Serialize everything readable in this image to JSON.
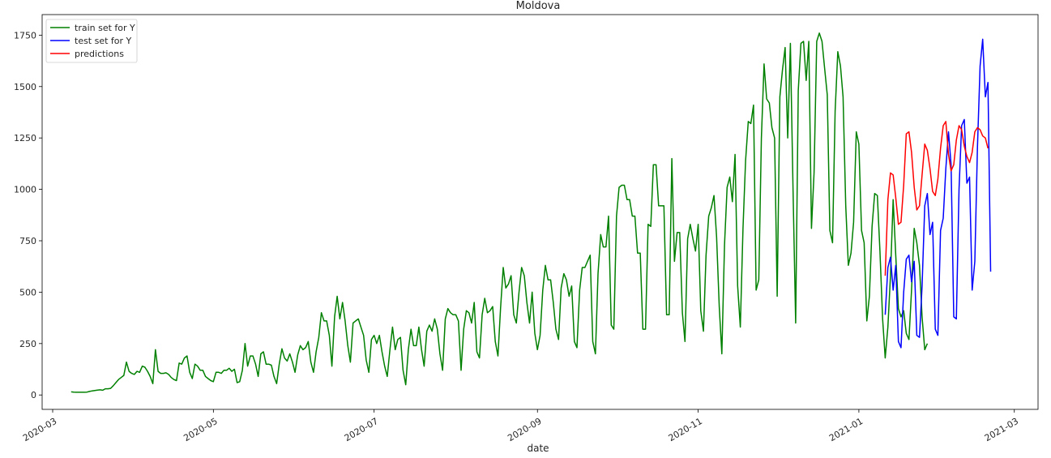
{
  "chart_data": {
    "type": "line",
    "title": "Moldova",
    "xlabel": "date",
    "ylabel": "",
    "x_axis_type": "date",
    "xlim": [
      "2020-02-26",
      "2021-03-10"
    ],
    "ylim": [
      -70,
      1850
    ],
    "grid": false,
    "legend_position": "top-left",
    "x_ticks": [
      "2020-03-01",
      "2020-05-01",
      "2020-07-01",
      "2020-09-01",
      "2020-11-01",
      "2021-01-01",
      "2021-03-01"
    ],
    "x_tick_labels": [
      "2020-03",
      "2020-05",
      "2020-07",
      "2020-09",
      "2020-11",
      "2021-01",
      "2021-03"
    ],
    "y_ticks": [
      0,
      250,
      500,
      750,
      1000,
      1250,
      1500,
      1750
    ],
    "y_tick_labels": [
      "0",
      "250",
      "500",
      "750",
      "1000",
      "1250",
      "1500",
      "1750"
    ],
    "series": [
      {
        "name": "train set for Y",
        "color": "#008000",
        "start_date": "2020-03-08",
        "values": [
          15,
          14,
          13,
          13,
          13,
          13,
          14,
          17,
          20,
          22,
          24,
          25,
          23,
          30,
          30,
          32,
          45,
          60,
          75,
          85,
          95,
          160,
          115,
          105,
          100,
          115,
          110,
          140,
          135,
          115,
          90,
          55,
          220,
          115,
          105,
          105,
          108,
          100,
          85,
          75,
          70,
          155,
          150,
          180,
          190,
          110,
          80,
          150,
          140,
          120,
          120,
          90,
          80,
          70,
          65,
          110,
          110,
          105,
          120,
          120,
          130,
          115,
          125,
          60,
          65,
          120,
          250,
          140,
          190,
          190,
          150,
          90,
          200,
          210,
          150,
          150,
          145,
          90,
          55,
          150,
          225,
          180,
          165,
          200,
          160,
          110,
          195,
          240,
          220,
          230,
          260,
          160,
          110,
          210,
          280,
          400,
          360,
          360,
          290,
          140,
          380,
          480,
          370,
          450,
          360,
          240,
          160,
          350,
          360,
          370,
          330,
          290,
          170,
          110,
          270,
          290,
          250,
          290,
          210,
          140,
          90,
          220,
          330,
          220,
          270,
          280,
          120,
          50,
          220,
          320,
          240,
          240,
          330,
          220,
          140,
          310,
          340,
          310,
          370,
          320,
          200,
          120,
          370,
          420,
          400,
          390,
          390,
          360,
          120,
          320,
          410,
          400,
          350,
          450,
          210,
          180,
          390,
          470,
          400,
          410,
          430,
          260,
          190,
          420,
          620,
          520,
          540,
          580,
          390,
          350,
          500,
          620,
          580,
          450,
          350,
          500,
          300,
          220,
          290,
          510,
          630,
          560,
          560,
          450,
          320,
          270,
          520,
          590,
          560,
          480,
          530,
          260,
          230,
          510,
          620,
          620,
          650,
          680,
          260,
          200,
          590,
          780,
          720,
          720,
          870,
          340,
          320,
          870,
          1010,
          1020,
          1020,
          950,
          950,
          870,
          870,
          690,
          690,
          320,
          320,
          830,
          820,
          1120,
          1120,
          920,
          920,
          920,
          390,
          390,
          1150,
          650,
          790,
          790,
          400,
          260,
          760,
          830,
          760,
          700,
          830,
          410,
          310,
          680,
          870,
          910,
          970,
          770,
          430,
          200,
          730,
          1010,
          1060,
          940,
          1170,
          530,
          330,
          810,
          1140,
          1330,
          1320,
          1410,
          510,
          560,
          1250,
          1610,
          1440,
          1420,
          1300,
          1250,
          480,
          1450,
          1580,
          1690,
          1250,
          1710,
          1010,
          350,
          1480,
          1710,
          1720,
          1530,
          1720,
          810,
          1080,
          1720,
          1760,
          1720,
          1590,
          1460,
          800,
          740,
          1380,
          1670,
          1600,
          1450,
          920,
          630,
          690,
          840,
          1280,
          1220,
          800,
          740,
          360,
          480,
          820,
          980,
          970,
          700,
          370,
          180,
          330,
          580,
          950,
          680,
          420,
          380,
          410,
          300,
          270,
          510,
          810,
          740,
          630,
          380,
          220,
          250
        ]
      },
      {
        "name": "test set for Y",
        "color": "#0000ff",
        "start_date": "2021-01-11",
        "values": [
          390,
          620,
          670,
          510,
          630,
          260,
          230,
          500,
          660,
          680,
          550,
          650,
          290,
          280,
          530,
          920,
          980,
          780,
          840,
          320,
          290,
          800,
          860,
          1100,
          1280,
          1120,
          380,
          370,
          1000,
          1310,
          1340,
          1030,
          1060,
          510,
          650,
          1200,
          1600,
          1730,
          1450,
          1520,
          600
        ]
      },
      {
        "name": "predictions",
        "color": "#ff0000",
        "start_date": "2021-01-11",
        "values": [
          580,
          950,
          1080,
          1070,
          960,
          830,
          840,
          1020,
          1270,
          1280,
          1180,
          1010,
          900,
          920,
          1070,
          1220,
          1190,
          1100,
          990,
          970,
          1050,
          1200,
          1310,
          1330,
          1170,
          1090,
          1120,
          1240,
          1310,
          1290,
          1210,
          1160,
          1130,
          1180,
          1280,
          1300,
          1290,
          1260,
          1250,
          1200
        ]
      }
    ]
  }
}
